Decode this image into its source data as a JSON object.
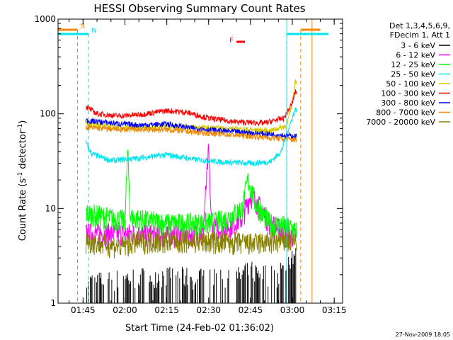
{
  "chart_data": {
    "type": "line",
    "title": "HESSI Observing Summary Count Rates",
    "xlabel": "Start Time (24-Feb-02 01:36:02)",
    "ylabel": "Count Rate (s",
    "ylabel_sup1": "-1",
    "ylabel_mid": " detector",
    "ylabel_sup2": "-1",
    "ylabel_end": ")",
    "y_scale": "log",
    "xlim": [
      "01:36:02",
      "03:18:00"
    ],
    "ylim": [
      1,
      1000
    ],
    "x_ticks": [
      "01:45",
      "02:00",
      "02:15",
      "02:30",
      "02:45",
      "03:00",
      "03:15"
    ],
    "y_ticks": [
      {
        "value": 1,
        "label": "1"
      },
      {
        "value": 10,
        "label": "10"
      },
      {
        "value": 100,
        "label": "100"
      },
      {
        "value": 1000,
        "label": "1000"
      }
    ],
    "legend_position": "right",
    "legend_header": [
      "Det 1,3,4,5,6,9,",
      "FDecim 1, Att 1"
    ],
    "data_start": "01:46:00",
    "data_end": "03:01:30",
    "series": [
      {
        "name": "3 - 6 keV",
        "color": "#000000",
        "style": "sparse",
        "points": [
          [
            "01:46",
            1.5
          ],
          [
            "01:55",
            1.6
          ],
          [
            "02:10",
            1.8
          ],
          [
            "02:25",
            1.7
          ],
          [
            "02:38",
            1.6
          ],
          [
            "02:45",
            2.0
          ],
          [
            "02:55",
            1.8
          ],
          [
            "03:00",
            3.0
          ]
        ]
      },
      {
        "name": "6 - 12 keV",
        "color": "#ff00ff",
        "style": "noisy",
        "points": [
          [
            "01:46",
            5.5
          ],
          [
            "02:00",
            5.5
          ],
          [
            "02:15",
            5.2
          ],
          [
            "02:28",
            5.5
          ],
          [
            "02:30",
            42
          ],
          [
            "02:31",
            6.5
          ],
          [
            "02:35",
            6.0
          ],
          [
            "02:42",
            8.0
          ],
          [
            "02:45",
            14
          ],
          [
            "02:47",
            12
          ],
          [
            "02:52",
            7.0
          ],
          [
            "02:58",
            5.5
          ],
          [
            "03:01",
            5.0
          ]
        ]
      },
      {
        "name": "12 - 25 keV",
        "color": "#00ff00",
        "style": "noisy",
        "points": [
          [
            "01:46",
            9.0
          ],
          [
            "01:55",
            8.0
          ],
          [
            "02:00",
            7.5
          ],
          [
            "02:01",
            40
          ],
          [
            "02:02",
            8.0
          ],
          [
            "02:15",
            7.0
          ],
          [
            "02:28",
            7.0
          ],
          [
            "02:35",
            7.5
          ],
          [
            "02:42",
            10
          ],
          [
            "02:44",
            20
          ],
          [
            "02:47",
            11
          ],
          [
            "02:52",
            7.0
          ],
          [
            "02:58",
            6.5
          ],
          [
            "03:01",
            6.0
          ]
        ]
      },
      {
        "name": "25 - 50 keV",
        "color": "#00e5ee",
        "style": "noisy",
        "points": [
          [
            "01:46",
            50
          ],
          [
            "01:48",
            38
          ],
          [
            "01:55",
            32
          ],
          [
            "02:05",
            34
          ],
          [
            "02:15",
            37
          ],
          [
            "02:25",
            33
          ],
          [
            "02:35",
            31
          ],
          [
            "02:45",
            30
          ],
          [
            "02:52",
            31
          ],
          [
            "02:56",
            40
          ],
          [
            "02:59",
            75
          ],
          [
            "03:01",
            110
          ]
        ]
      },
      {
        "name": "50 - 100 keV",
        "color": "#d4c800",
        "style": "noisy",
        "points": [
          [
            "01:46",
            80
          ],
          [
            "01:55",
            72
          ],
          [
            "02:05",
            70
          ],
          [
            "02:15",
            74
          ],
          [
            "02:25",
            72
          ],
          [
            "02:35",
            70
          ],
          [
            "02:45",
            68
          ],
          [
            "02:52",
            66
          ],
          [
            "02:58",
            75
          ],
          [
            "03:00",
            130
          ],
          [
            "03:01",
            220
          ]
        ]
      },
      {
        "name": "100 - 300 keV",
        "color": "#ff0000",
        "style": "noisy",
        "points": [
          [
            "01:46",
            120
          ],
          [
            "01:50",
            100
          ],
          [
            "01:58",
            95
          ],
          [
            "02:05",
            98
          ],
          [
            "02:15",
            108
          ],
          [
            "02:22",
            104
          ],
          [
            "02:30",
            90
          ],
          [
            "02:40",
            82
          ],
          [
            "02:50",
            80
          ],
          [
            "02:57",
            90
          ],
          [
            "03:00",
            130
          ],
          [
            "03:01",
            170
          ]
        ]
      },
      {
        "name": "300 - 800 keV",
        "color": "#0000ff",
        "style": "noisy",
        "points": [
          [
            "01:46",
            85
          ],
          [
            "01:55",
            80
          ],
          [
            "02:05",
            76
          ],
          [
            "02:15",
            78
          ],
          [
            "02:25",
            70
          ],
          [
            "02:35",
            66
          ],
          [
            "02:45",
            63
          ],
          [
            "02:55",
            60
          ],
          [
            "03:01",
            58
          ]
        ]
      },
      {
        "name": "800 - 7000 keV",
        "color": "#ee8800",
        "style": "noisy",
        "points": [
          [
            "01:46",
            72
          ],
          [
            "01:55",
            69
          ],
          [
            "02:05",
            68
          ],
          [
            "02:15",
            68
          ],
          [
            "02:25",
            64
          ],
          [
            "02:35",
            61
          ],
          [
            "02:45",
            58
          ],
          [
            "02:55",
            55
          ],
          [
            "03:01",
            53
          ]
        ]
      },
      {
        "name": "7000 - 20000 keV",
        "color": "#888000",
        "style": "noisy",
        "points": [
          [
            "01:46",
            4.6
          ],
          [
            "01:58",
            4.0
          ],
          [
            "02:05",
            4.5
          ],
          [
            "02:15",
            4.6
          ],
          [
            "02:30",
            4.5
          ],
          [
            "02:45",
            4.3
          ],
          [
            "02:55",
            4.5
          ],
          [
            "03:01",
            4.5
          ]
        ]
      }
    ],
    "markers": [
      {
        "label": "S",
        "color": "#ee8800",
        "style": "dashed",
        "segments": [
          [
            "01:36",
            "01:43"
          ],
          [
            "03:03",
            "03:10"
          ]
        ]
      },
      {
        "label": "N",
        "color": "#00e5ee",
        "style": "dashed",
        "segments": [
          [
            "01:36",
            "01:47"
          ],
          [
            "02:58",
            "03:13"
          ]
        ]
      },
      {
        "label": "F",
        "color": "#ff0000",
        "style": "solid",
        "segments": [
          [
            "02:40",
            "02:43"
          ]
        ]
      }
    ]
  },
  "footer": {
    "timestamp": "27-Nov-2009 18:05"
  }
}
